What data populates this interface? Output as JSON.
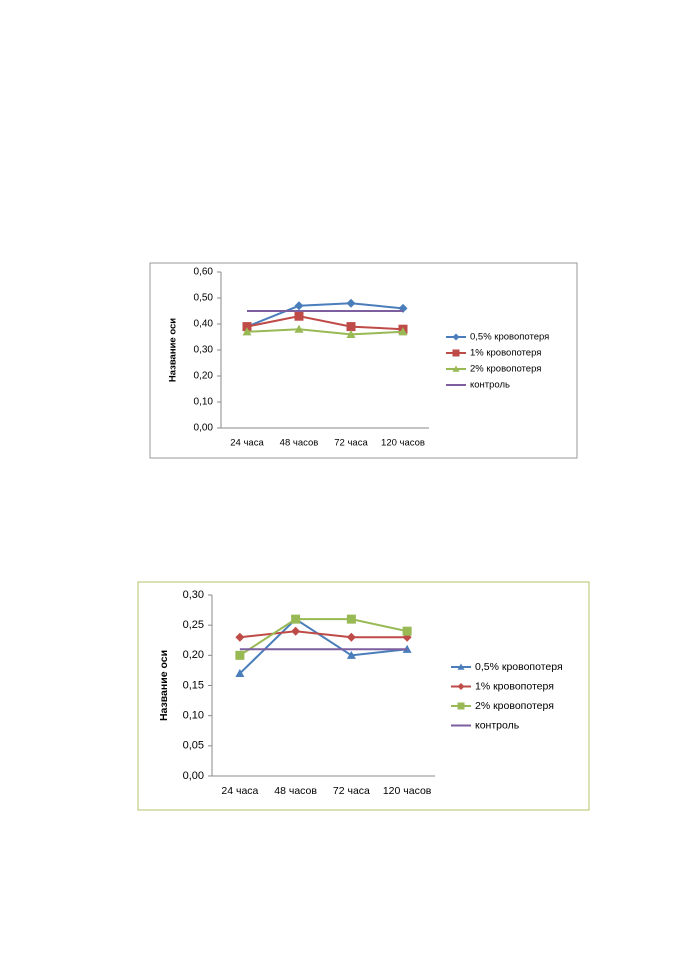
{
  "chart_data": [
    {
      "type": "line",
      "y_label": "Название оси",
      "categories": [
        "24 часа",
        "48 часов",
        "72 часа",
        "120 часов"
      ],
      "ylim": [
        0,
        0.6
      ],
      "yticks": [
        {
          "value": 0,
          "label": "0,00"
        },
        {
          "value": 0.1,
          "label": "0,10"
        },
        {
          "value": 0.2,
          "label": "0,20"
        },
        {
          "value": 0.3,
          "label": "0,30"
        },
        {
          "value": 0.4,
          "label": "0,40"
        },
        {
          "value": 0.5,
          "label": "0,50"
        },
        {
          "value": 0.6,
          "label": "0,60"
        }
      ],
      "series": [
        {
          "name": "0,5% кровопотеря",
          "color": "#4a7ebb",
          "marker": "diamond",
          "values": [
            0.39,
            0.47,
            0.48,
            0.46
          ]
        },
        {
          "name": "1% кровопотеря",
          "color": "#be4b48",
          "marker": "square",
          "values": [
            0.39,
            0.43,
            0.39,
            0.38
          ]
        },
        {
          "name": "2% кровопотеря",
          "color": "#98b954",
          "marker": "triangle",
          "values": [
            0.37,
            0.38,
            0.36,
            0.37
          ]
        },
        {
          "name": "контроль",
          "color": "#7d5fa0",
          "marker": "none",
          "values": [
            0.45,
            0.45,
            0.45,
            0.45
          ]
        }
      ]
    },
    {
      "type": "line",
      "y_label": "Название оси",
      "categories": [
        "24 часа",
        "48 часов",
        "72 часа",
        "120 часов"
      ],
      "ylim": [
        0,
        0.3
      ],
      "yticks": [
        {
          "value": 0,
          "label": "0,00"
        },
        {
          "value": 0.05,
          "label": "0,05"
        },
        {
          "value": 0.1,
          "label": "0,10"
        },
        {
          "value": 0.15,
          "label": "0,15"
        },
        {
          "value": 0.2,
          "label": "0,20"
        },
        {
          "value": 0.25,
          "label": "0,25"
        },
        {
          "value": 0.3,
          "label": "0,30"
        }
      ],
      "series": [
        {
          "name": "0,5% кровопотеря",
          "color": "#4a7ebb",
          "marker": "triangle",
          "values": [
            0.17,
            0.26,
            0.2,
            0.21
          ]
        },
        {
          "name": "1% кровопотеря",
          "color": "#be4b48",
          "marker": "diamond",
          "values": [
            0.23,
            0.24,
            0.23,
            0.23
          ]
        },
        {
          "name": "2% кровопотеря",
          "color": "#98b954",
          "marker": "square",
          "values": [
            0.2,
            0.26,
            0.26,
            0.24
          ]
        },
        {
          "name": "контроль",
          "color": "#7d5fa0",
          "marker": "none",
          "values": [
            0.21,
            0.21,
            0.21,
            0.21
          ]
        }
      ]
    }
  ]
}
